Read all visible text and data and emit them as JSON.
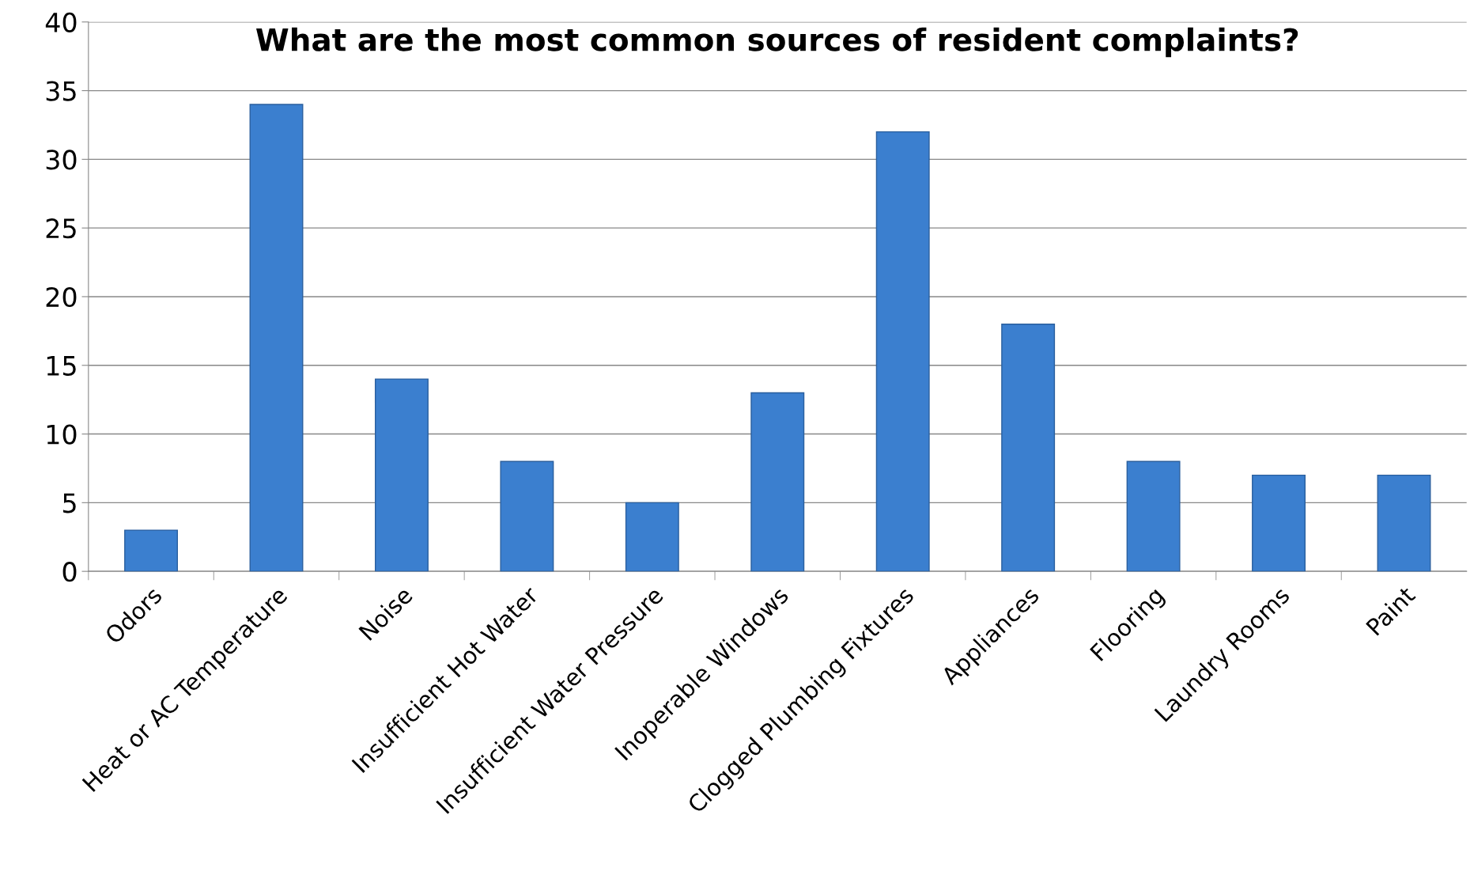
{
  "chart_data": {
    "type": "bar",
    "title": "What are the most common sources of resident complaints?",
    "categories": [
      "Odors",
      "Heat or AC Temperature",
      "Noise",
      "Insufficient Hot Water",
      "Insufficient Water Pressure",
      "Inoperable Windows",
      "Clogged Plumbing Fixtures",
      "Appliances",
      "Flooring",
      "Laundry Rooms",
      "Paint"
    ],
    "values": [
      3,
      34,
      14,
      8,
      5,
      13,
      32,
      18,
      8,
      7,
      7
    ],
    "color": "#3b7fcf",
    "ylim": [
      0,
      40
    ],
    "yticks": [
      0,
      5,
      10,
      15,
      20,
      25,
      30,
      35,
      40
    ],
    "grid": "y",
    "legend": false
  }
}
